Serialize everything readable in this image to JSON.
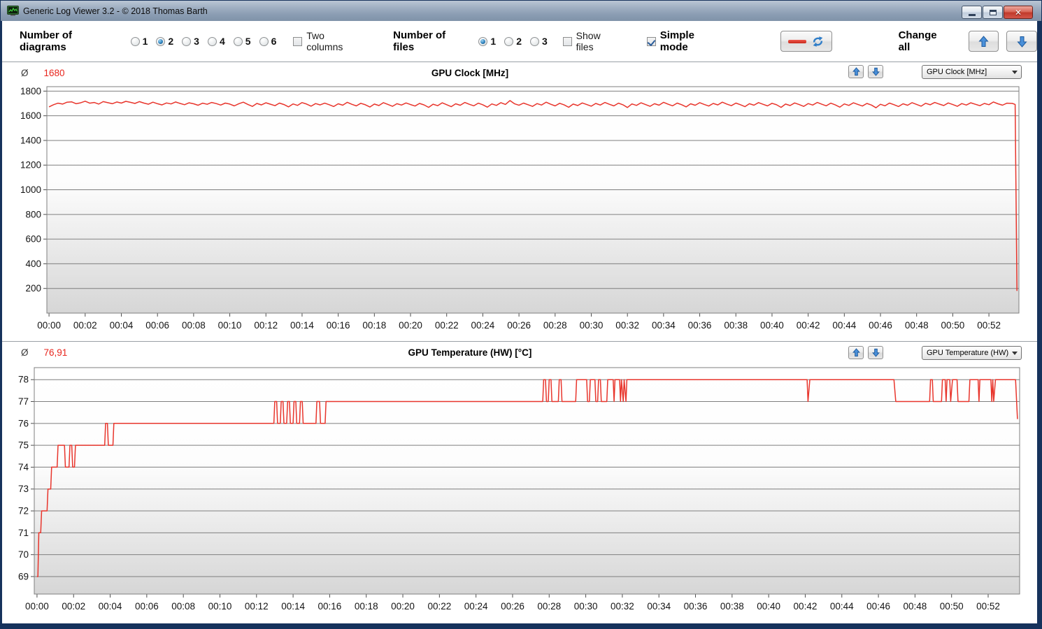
{
  "window": {
    "title": "Generic Log Viewer 3.2 - © 2018 Thomas Barth",
    "controls": {
      "minimize": "minimize",
      "maximize": "maximize",
      "close": "close"
    }
  },
  "toolbar": {
    "diagrams_label": "Number of diagrams",
    "diagram_options": [
      "1",
      "2",
      "3",
      "4",
      "5",
      "6"
    ],
    "diagrams_selected": "2",
    "two_columns_label": "Two columns",
    "two_columns_checked": false,
    "files_label": "Number of files",
    "file_options": [
      "1",
      "2",
      "3"
    ],
    "files_selected": "1",
    "show_files_label": "Show files",
    "show_files_checked": false,
    "simple_mode_label": "Simple mode",
    "simple_mode_checked": true,
    "change_all_label": "Change all"
  },
  "accent_colors": {
    "series_red": "#e8352c",
    "arrow_blue": "#2f7dc8",
    "grid_gray": "#7f7f7f"
  },
  "time_axis": {
    "labels": [
      "00:00",
      "00:02",
      "00:04",
      "00:06",
      "00:08",
      "00:10",
      "00:12",
      "00:14",
      "00:16",
      "00:18",
      "00:20",
      "00:22",
      "00:24",
      "00:26",
      "00:28",
      "00:30",
      "00:32",
      "00:34",
      "00:36",
      "00:38",
      "00:40",
      "00:42",
      "00:44",
      "00:46",
      "00:48",
      "00:50",
      "00:52"
    ],
    "step_min": 2
  },
  "chart_data": [
    {
      "type": "line",
      "title": "GPU Clock [MHz]",
      "avg_symbol": "Ø",
      "avg_value": "1680",
      "dropdown_value": "GPU Clock [MHz]",
      "ylabel": "",
      "xlabel": "",
      "ylim": [
        0,
        1836
      ],
      "yticks": [
        200,
        400,
        600,
        800,
        1000,
        1200,
        1400,
        1600,
        1800
      ],
      "xlim": [
        -0.12,
        53.66
      ],
      "series": {
        "name": "GPU Clock",
        "dt": 0.25,
        "values": [
          1672,
          1690,
          1702,
          1695,
          1710,
          1713,
          1698,
          1705,
          1718,
          1702,
          1708,
          1695,
          1715,
          1706,
          1698,
          1712,
          1703,
          1717,
          1709,
          1700,
          1715,
          1703,
          1694,
          1710,
          1698,
          1688,
          1704,
          1696,
          1712,
          1700,
          1690,
          1705,
          1697,
          1685,
          1702,
          1693,
          1708,
          1699,
          1687,
          1703,
          1695,
          1680,
          1698,
          1710,
          1692,
          1676,
          1700,
          1688,
          1705,
          1694,
          1682,
          1703,
          1691,
          1672,
          1696,
          1684,
          1707,
          1695,
          1678,
          1699,
          1688,
          1702,
          1690,
          1675,
          1697,
          1686,
          1709,
          1693,
          1680,
          1701,
          1689,
          1671,
          1695,
          1683,
          1706,
          1692,
          1677,
          1698,
          1687,
          1704,
          1691,
          1679,
          1700,
          1688,
          1668,
          1694,
          1682,
          1705,
          1690,
          1674,
          1697,
          1685,
          1708,
          1693,
          1681,
          1702,
          1689,
          1670,
          1696,
          1684,
          1706,
          1692,
          1723,
          1698,
          1685,
          1703,
          1690,
          1676,
          1699,
          1687,
          1710,
          1694,
          1680,
          1701,
          1688,
          1669,
          1695,
          1683,
          1704,
          1691,
          1678,
          1700,
          1687,
          1708,
          1693,
          1680,
          1702,
          1689,
          1667,
          1696,
          1684,
          1705,
          1691,
          1677,
          1698,
          1686,
          1709,
          1694,
          1681,
          1703,
          1690,
          1672,
          1697,
          1685,
          1706,
          1692,
          1679,
          1700,
          1688,
          1710,
          1695,
          1682,
          1703,
          1690,
          1674,
          1698,
          1686,
          1707,
          1693,
          1680,
          1701,
          1689,
          1668,
          1695,
          1683,
          1704,
          1691,
          1676,
          1699,
          1687,
          1708,
          1694,
          1681,
          1702,
          1688,
          1670,
          1696,
          1684,
          1705,
          1692,
          1679,
          1700,
          1687,
          1665,
          1693,
          1681,
          1703,
          1690,
          1675,
          1697,
          1685,
          1706,
          1692,
          1678,
          1701,
          1689,
          1708,
          1695,
          1683,
          1704,
          1691,
          1677,
          1699,
          1687,
          1705,
          1693,
          1682,
          1700,
          1690,
          1712,
          1697,
          1686,
          1702
        ],
        "tail": [
          [
            53.3,
            1700
          ],
          [
            53.45,
            1692
          ],
          [
            53.55,
            180
          ]
        ]
      }
    },
    {
      "type": "line",
      "title": "GPU Temperature (HW) [°C]",
      "avg_symbol": "Ø",
      "avg_value": "76,91",
      "dropdown_value": "GPU Temperature (HW) [°C]",
      "ylabel": "",
      "xlabel": "",
      "ylim": [
        68.2,
        78.55
      ],
      "yticks": [
        69,
        70,
        71,
        72,
        73,
        74,
        75,
        76,
        77,
        78
      ],
      "xlim": [
        -0.15,
        53.72
      ],
      "series": {
        "name": "GPU Temperature",
        "points": [
          [
            0.0,
            69
          ],
          [
            0.05,
            69
          ],
          [
            0.1,
            71
          ],
          [
            0.2,
            71
          ],
          [
            0.25,
            72
          ],
          [
            0.55,
            72
          ],
          [
            0.6,
            73
          ],
          [
            0.75,
            73
          ],
          [
            0.8,
            74
          ],
          [
            1.1,
            74
          ],
          [
            1.15,
            75
          ],
          [
            1.5,
            75
          ],
          [
            1.55,
            74
          ],
          [
            1.75,
            74
          ],
          [
            1.8,
            75
          ],
          [
            1.9,
            75
          ],
          [
            1.95,
            74
          ],
          [
            2.05,
            74
          ],
          [
            2.1,
            75
          ],
          [
            3.7,
            75
          ],
          [
            3.75,
            76
          ],
          [
            3.85,
            76
          ],
          [
            3.9,
            75
          ],
          [
            4.15,
            75
          ],
          [
            4.2,
            76
          ],
          [
            12.95,
            76
          ],
          [
            13.0,
            77
          ],
          [
            13.1,
            77
          ],
          [
            13.15,
            76
          ],
          [
            13.3,
            76
          ],
          [
            13.35,
            77
          ],
          [
            13.45,
            77
          ],
          [
            13.5,
            76
          ],
          [
            13.65,
            76
          ],
          [
            13.7,
            77
          ],
          [
            13.8,
            77
          ],
          [
            13.85,
            76
          ],
          [
            14.0,
            76
          ],
          [
            14.05,
            77
          ],
          [
            14.15,
            77
          ],
          [
            14.2,
            76
          ],
          [
            14.35,
            76
          ],
          [
            14.4,
            77
          ],
          [
            14.5,
            77
          ],
          [
            14.55,
            76
          ],
          [
            15.25,
            76
          ],
          [
            15.3,
            77
          ],
          [
            15.45,
            77
          ],
          [
            15.5,
            76
          ],
          [
            15.75,
            76
          ],
          [
            15.8,
            77
          ],
          [
            27.65,
            77
          ],
          [
            27.7,
            78
          ],
          [
            27.8,
            78
          ],
          [
            27.85,
            77
          ],
          [
            27.95,
            77
          ],
          [
            28.0,
            78
          ],
          [
            28.1,
            78
          ],
          [
            28.15,
            77
          ],
          [
            28.5,
            77
          ],
          [
            28.55,
            78
          ],
          [
            28.65,
            78
          ],
          [
            28.7,
            77
          ],
          [
            29.45,
            77
          ],
          [
            29.5,
            78
          ],
          [
            30.05,
            78
          ],
          [
            30.1,
            77
          ],
          [
            30.2,
            77
          ],
          [
            30.25,
            78
          ],
          [
            30.5,
            78
          ],
          [
            30.55,
            77
          ],
          [
            30.65,
            77
          ],
          [
            30.7,
            78
          ],
          [
            30.8,
            78
          ],
          [
            30.85,
            77
          ],
          [
            31.15,
            77
          ],
          [
            31.2,
            78
          ],
          [
            31.5,
            78
          ],
          [
            31.55,
            77
          ],
          [
            31.6,
            78
          ],
          [
            31.85,
            78
          ],
          [
            31.9,
            77
          ],
          [
            31.95,
            78
          ],
          [
            32.05,
            77
          ],
          [
            32.1,
            78
          ],
          [
            32.2,
            77
          ],
          [
            32.25,
            78
          ],
          [
            42.1,
            78
          ],
          [
            42.15,
            77
          ],
          [
            42.25,
            78
          ],
          [
            46.85,
            78
          ],
          [
            46.95,
            77
          ],
          [
            48.8,
            77
          ],
          [
            48.85,
            78
          ],
          [
            48.95,
            78
          ],
          [
            49.0,
            77
          ],
          [
            49.45,
            77
          ],
          [
            49.5,
            78
          ],
          [
            49.65,
            78
          ],
          [
            49.7,
            77
          ],
          [
            49.75,
            78
          ],
          [
            49.9,
            78
          ],
          [
            49.95,
            77
          ],
          [
            50.05,
            78
          ],
          [
            50.3,
            78
          ],
          [
            50.35,
            77
          ],
          [
            50.95,
            77
          ],
          [
            51.0,
            78
          ],
          [
            51.45,
            78
          ],
          [
            51.5,
            77
          ],
          [
            51.55,
            78
          ],
          [
            52.15,
            78
          ],
          [
            52.2,
            77
          ],
          [
            52.25,
            78
          ],
          [
            52.3,
            77
          ],
          [
            52.4,
            78
          ],
          [
            53.5,
            78
          ],
          [
            53.6,
            76.2
          ]
        ]
      }
    }
  ]
}
